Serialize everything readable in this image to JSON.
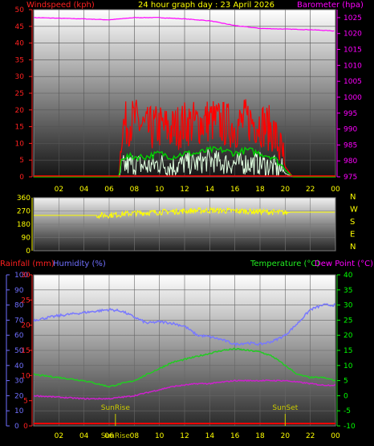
{
  "colors": {
    "wind_title": "#ff2020",
    "date_title": "#ffff00",
    "baro_title": "#ff00ff",
    "rain_title": "#ff2020",
    "hum_title": "#7070ff",
    "temp_title": "#00ff00",
    "dew_title": "#ff00ff",
    "axis_text": "#ffff00",
    "compass_text": "#ffff00",
    "wind_gust": "#ff0000",
    "wind_avg": "#00cc00",
    "wind_speed": "#e0ffe0",
    "baro": "#ff00ff",
    "dir": "#ffff00",
    "humidity": "#7878ff",
    "temperature": "#22cc22",
    "dewpoint": "#cc22cc",
    "rain": "#ff0000"
  },
  "chart_data": [
    {
      "type": "line",
      "title": "24 hour graph day : 23 April 2026",
      "left_axis_label": "Windspeed (kph)",
      "right_axis_label": "Barometer (hpa)",
      "x_ticks": [
        "02",
        "04",
        "06",
        "08",
        "10",
        "12",
        "14",
        "16",
        "18",
        "20",
        "22",
        "00"
      ],
      "x_range": [
        0,
        24
      ],
      "y_left_ticks": [
        "0",
        "5",
        "10",
        "15",
        "20",
        "25",
        "30",
        "35",
        "40",
        "45",
        "50"
      ],
      "y_left_range": [
        0,
        50
      ],
      "y_right_ticks": [
        "975",
        "980",
        "985",
        "990",
        "995",
        "1000",
        "1005",
        "1010",
        "1015",
        "1020",
        "1025"
      ],
      "y_right_range": [
        975,
        1027.5
      ],
      "series": [
        {
          "key": "baro",
          "x": [
            0,
            2,
            4,
            6,
            8,
            10,
            12,
            14,
            16,
            18,
            20,
            22,
            24
          ],
          "y": [
            1025,
            1024.8,
            1024.6,
            1024.3,
            1025,
            1025,
            1024.6,
            1024,
            1022.5,
            1021.6,
            1021.4,
            1021.2,
            1020.8
          ]
        },
        {
          "key": "wind_gust",
          "x": [
            0,
            6.8,
            7,
            8,
            9,
            10,
            11,
            12,
            13,
            14,
            15,
            16,
            17,
            18,
            19,
            19.8,
            20,
            20.6,
            24
          ],
          "y": [
            0,
            0,
            15,
            17,
            14,
            15,
            14,
            16,
            16,
            17,
            16,
            15,
            17,
            16,
            14,
            6,
            3,
            0,
            0
          ]
        },
        {
          "key": "wind_avg",
          "x": [
            0,
            6.8,
            7,
            8,
            9,
            10,
            11,
            12,
            13,
            14,
            15,
            16,
            17,
            18,
            19,
            19.8,
            20,
            20.6,
            24
          ],
          "y": [
            0,
            0,
            6,
            6,
            6,
            7,
            6,
            7,
            7,
            8,
            8,
            7,
            8,
            7,
            6,
            3,
            2,
            0,
            0
          ]
        },
        {
          "key": "wind_speed",
          "x": [
            0,
            6.8,
            7,
            8,
            9,
            10,
            11,
            12,
            13,
            14,
            15,
            16,
            17,
            18,
            19,
            19.8,
            20,
            20.6,
            24
          ],
          "y": [
            0,
            0,
            3,
            4,
            3,
            4,
            3,
            4,
            4,
            5,
            4,
            4,
            4,
            4,
            3,
            2,
            1,
            0,
            0
          ]
        }
      ]
    },
    {
      "type": "line",
      "title": "",
      "x_range": [
        0,
        24
      ],
      "y_ticks": [
        "0",
        "90",
        "180",
        "270",
        "360"
      ],
      "y_range": [
        0,
        360
      ],
      "compass_labels": [
        "N",
        "W",
        "S",
        "E",
        "N"
      ],
      "series": [
        {
          "key": "dir",
          "x": [
            0,
            5,
            6,
            7,
            8,
            9,
            10,
            11,
            12,
            13,
            14,
            15,
            16,
            17,
            18,
            19,
            20,
            20.5,
            24
          ],
          "y": [
            240,
            240,
            242,
            248,
            255,
            258,
            262,
            266,
            270,
            272,
            274,
            272,
            270,
            268,
            266,
            262,
            258,
            262,
            262
          ]
        }
      ]
    },
    {
      "type": "line",
      "title": "",
      "labels": {
        "rain": "Rainfall (mm)",
        "humidity": "Humidity (%)",
        "temperature": "Temperature (°C)",
        "dewpoint": "Dew Point (°C)"
      },
      "x_ticks": [
        "02",
        "04",
        "06",
        "08",
        "10",
        "12",
        "14",
        "16",
        "18",
        "20",
        "22",
        "00"
      ],
      "x_range": [
        0,
        24
      ],
      "y_rain_ticks": [
        "0",
        "5",
        "10",
        "15",
        "20",
        "25",
        "30"
      ],
      "y_rain_range": [
        0,
        30
      ],
      "y_hum_ticks": [
        "0",
        "10",
        "20",
        "30",
        "40",
        "50",
        "60",
        "70",
        "80",
        "90",
        "100"
      ],
      "y_hum_range": [
        0,
        100
      ],
      "y_temp_ticks": [
        "-10",
        "-5",
        "0",
        "5",
        "10",
        "15",
        "20",
        "25",
        "30",
        "35",
        "40"
      ],
      "y_temp_range": [
        -10,
        40
      ],
      "sunrise": {
        "label": "SunRise",
        "hour": 6.5
      },
      "sunset": {
        "label": "SunSet",
        "hour": 20.0
      },
      "series": [
        {
          "key": "humidity",
          "x": [
            0,
            2,
            4,
            6,
            7,
            8,
            9,
            10,
            11,
            12,
            13,
            14,
            15,
            16,
            17,
            18,
            19,
            20,
            21,
            22,
            23,
            24
          ],
          "y": [
            70,
            73,
            75,
            77,
            76,
            72,
            68,
            69,
            68,
            66,
            60,
            59,
            57,
            54,
            55,
            54,
            56,
            60,
            68,
            77,
            80,
            80
          ]
        },
        {
          "key": "temperature",
          "x": [
            0,
            2,
            4,
            6,
            7,
            8,
            9,
            10,
            11,
            12,
            13,
            14,
            15,
            16,
            17,
            18,
            19,
            20,
            21,
            22,
            23,
            24
          ],
          "y": [
            7,
            6,
            5,
            3,
            4,
            5,
            7,
            9,
            11,
            12,
            13,
            14,
            15,
            15.5,
            15,
            14.5,
            13,
            10,
            7,
            6,
            6,
            5
          ]
        },
        {
          "key": "dewpoint",
          "x": [
            0,
            2,
            4,
            6,
            7,
            8,
            9,
            10,
            11,
            12,
            13,
            14,
            15,
            16,
            17,
            18,
            19,
            20,
            21,
            22,
            23,
            24
          ],
          "y": [
            0,
            -0.5,
            -1,
            -1,
            -0.5,
            0,
            1,
            2,
            3,
            3.5,
            4,
            4,
            4.5,
            5,
            5,
            5,
            5,
            5,
            4.5,
            4,
            3.5,
            3.5
          ]
        },
        {
          "key": "rain",
          "x": [
            0,
            24
          ],
          "y": [
            0,
            0
          ]
        }
      ]
    }
  ]
}
